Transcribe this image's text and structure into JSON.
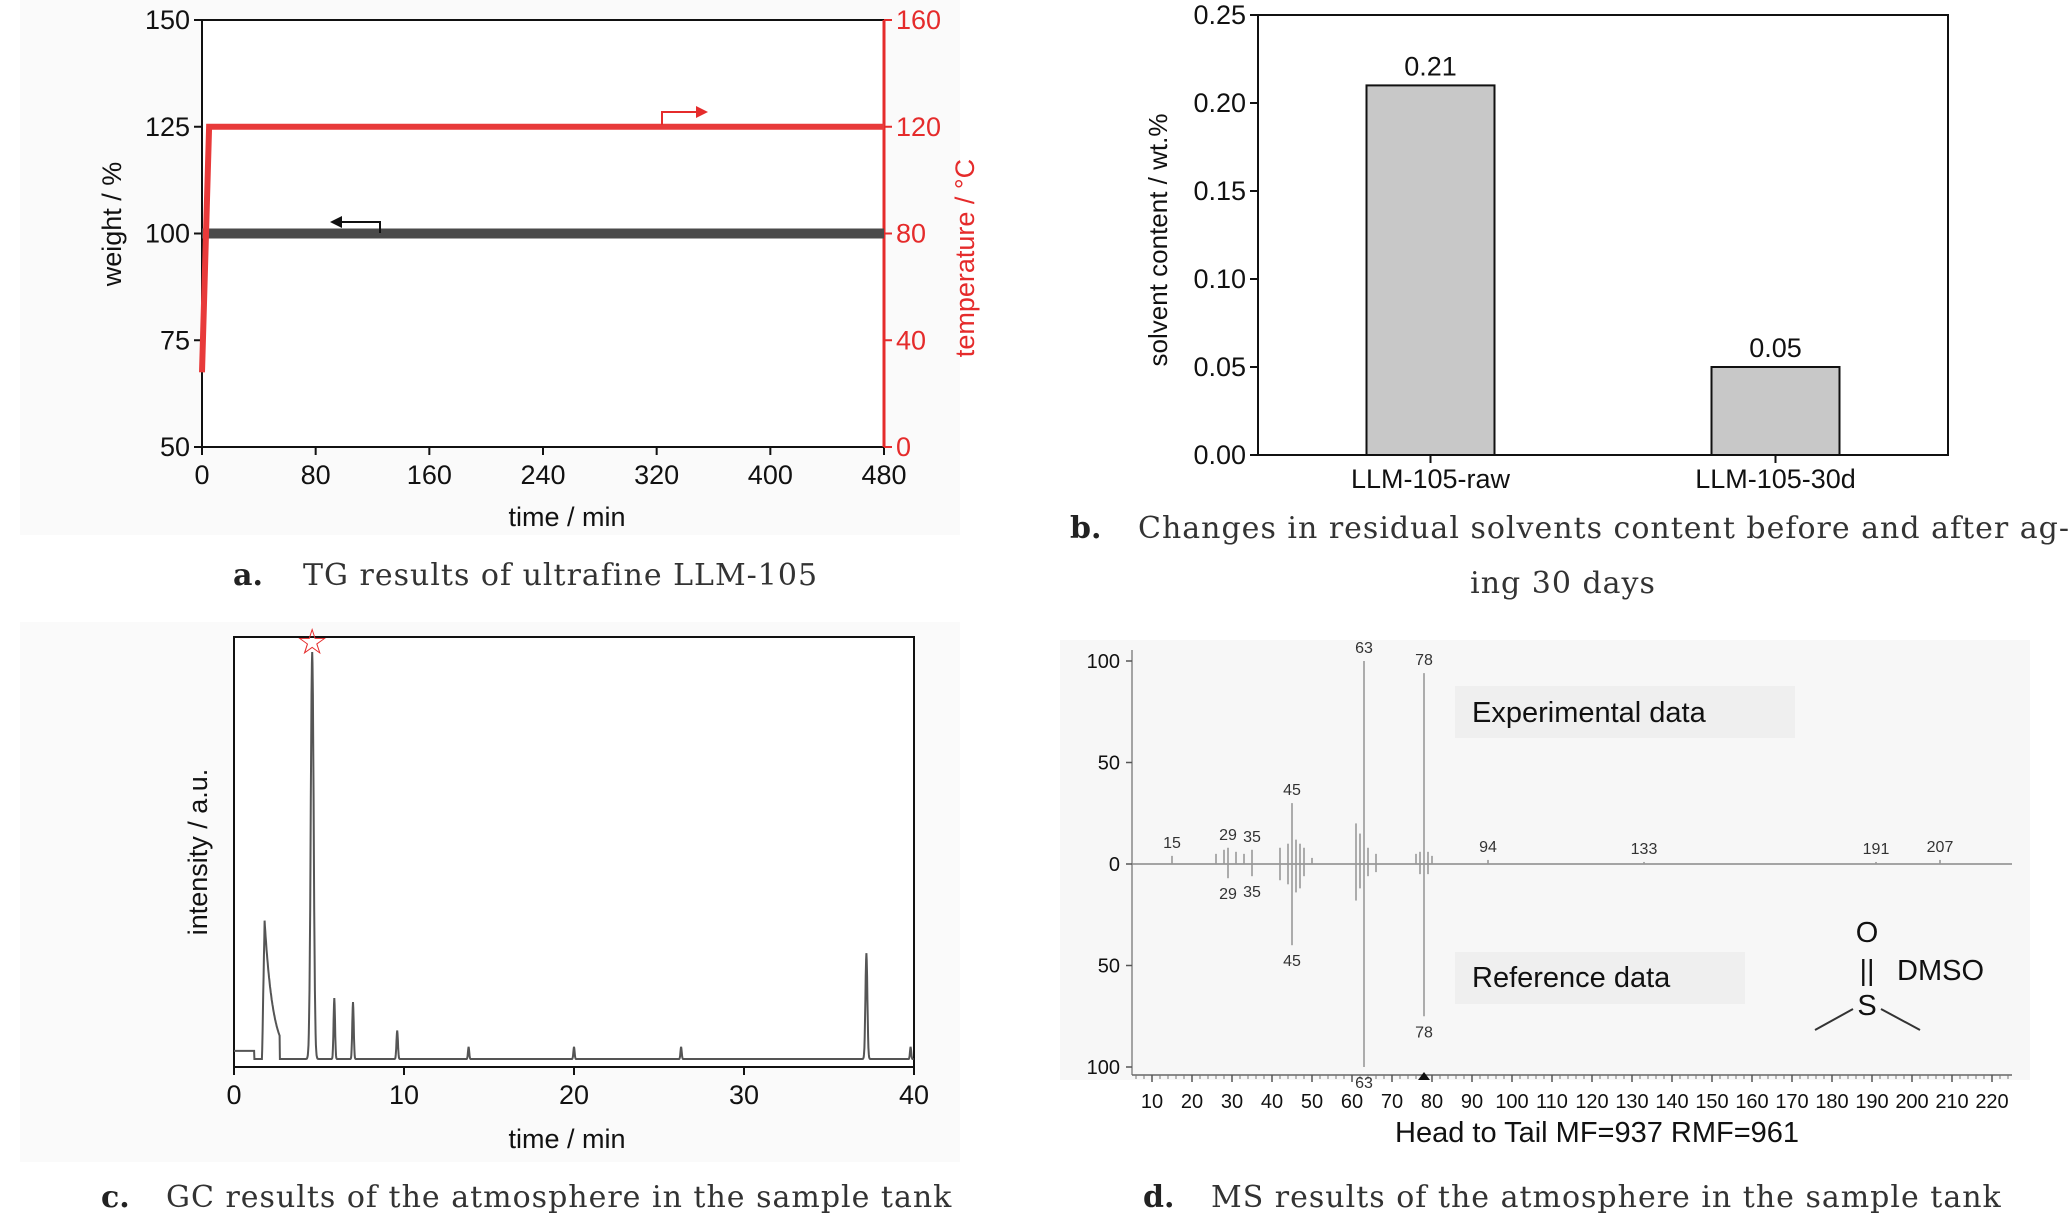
{
  "chart_data": [
    {
      "panel": "a",
      "type": "line",
      "caption_letter": "a.",
      "caption": "TG results of ultrafine LLM-105",
      "xlabel": "time / min",
      "ylabel": "weight / %",
      "y2label": "temperature / °C",
      "xlim": [
        0,
        480
      ],
      "ylim": [
        50,
        150
      ],
      "y2lim": [
        0,
        160
      ],
      "x_ticks": [
        "0",
        "80",
        "160",
        "240",
        "320",
        "400",
        "480"
      ],
      "y_ticks": [
        "50",
        "75",
        "100",
        "125",
        "150"
      ],
      "y2_ticks": [
        "0",
        "40",
        "80",
        "120",
        "160"
      ],
      "colors": {
        "weight": "#4a4a4a",
        "temperature": "#e83a3a"
      },
      "series": [
        {
          "axis": "left",
          "x": [
            0,
            480
          ],
          "y": [
            100,
            100
          ]
        },
        {
          "axis": "right",
          "x": [
            0,
            5,
            480
          ],
          "y": [
            28,
            120,
            120
          ]
        }
      ]
    },
    {
      "panel": "b",
      "type": "bar",
      "caption_letter": "b.",
      "caption_line1": "Changes in residual solvents content before and after ag-",
      "caption_line2": "ing 30 days",
      "categories": [
        "LLM-105-raw",
        "LLM-105-30d"
      ],
      "values": [
        0.21,
        0.05
      ],
      "data_labels": [
        "0.21",
        "0.05"
      ],
      "ylabel": "solvent content / wt.%",
      "ylim": [
        0,
        0.25
      ],
      "y_ticks": [
        "0.00",
        "0.05",
        "0.10",
        "0.15",
        "0.20",
        "0.25"
      ],
      "bar_color": "#c8c8c8"
    },
    {
      "panel": "c",
      "type": "line",
      "caption_letter": "c.",
      "caption": "GC results of the atmosphere in the sample tank",
      "xlabel": "time / min",
      "ylabel": "intensity / a.u.",
      "xlim": [
        0,
        40
      ],
      "x_ticks": [
        "0",
        "10",
        "20",
        "30",
        "40"
      ],
      "marker": "☆",
      "peaks": [
        {
          "x": 1.8,
          "h": 0.34,
          "w": 0.9
        },
        {
          "x": 4.6,
          "h": 1.0,
          "w": 0.12
        },
        {
          "x": 5.9,
          "h": 0.15,
          "w": 0.06
        },
        {
          "x": 7.0,
          "h": 0.14,
          "w": 0.06
        },
        {
          "x": 9.6,
          "h": 0.07,
          "w": 0.06
        },
        {
          "x": 13.8,
          "h": 0.03,
          "w": 0.05
        },
        {
          "x": 20.0,
          "h": 0.03,
          "w": 0.05
        },
        {
          "x": 26.3,
          "h": 0.03,
          "w": 0.05
        },
        {
          "x": 37.2,
          "h": 0.26,
          "w": 0.08
        },
        {
          "x": 39.8,
          "h": 0.03,
          "w": 0.05
        }
      ]
    },
    {
      "panel": "d",
      "type": "bar",
      "caption_letter": "d.",
      "caption": "MS results of the atmosphere in the sample tank",
      "xlim": [
        5,
        225
      ],
      "x_ticks": [
        "10",
        "20",
        "30",
        "40",
        "50",
        "60",
        "70",
        "80",
        "90",
        "100",
        "110",
        "120",
        "130",
        "140",
        "150",
        "160",
        "170",
        "180",
        "190",
        "200",
        "210",
        "220"
      ],
      "y_ticks_top": [
        "100",
        "50",
        "0"
      ],
      "y_ticks_bottom": [
        "50",
        "100"
      ],
      "experimental_label": "Experimental data",
      "reference_label": "Reference data",
      "footer": "Head to Tail MF=937  RMF=961",
      "molecule": {
        "top": "O",
        "bond": "||",
        "center": "S",
        "name": "DMSO"
      },
      "experimental_peaks": [
        {
          "mz": 15,
          "i": 4,
          "label": "15"
        },
        {
          "mz": 26,
          "i": 5
        },
        {
          "mz": 28,
          "i": 7
        },
        {
          "mz": 29,
          "i": 8,
          "label": "29"
        },
        {
          "mz": 31,
          "i": 6
        },
        {
          "mz": 33,
          "i": 5
        },
        {
          "mz": 35,
          "i": 7,
          "label": "35"
        },
        {
          "mz": 42,
          "i": 8
        },
        {
          "mz": 44,
          "i": 10
        },
        {
          "mz": 45,
          "i": 30,
          "label": "45"
        },
        {
          "mz": 46,
          "i": 12
        },
        {
          "mz": 47,
          "i": 10
        },
        {
          "mz": 48,
          "i": 8
        },
        {
          "mz": 50,
          "i": 3
        },
        {
          "mz": 61,
          "i": 20
        },
        {
          "mz": 62,
          "i": 15
        },
        {
          "mz": 63,
          "i": 100,
          "label": "63"
        },
        {
          "mz": 64,
          "i": 8
        },
        {
          "mz": 66,
          "i": 5
        },
        {
          "mz": 76,
          "i": 5
        },
        {
          "mz": 77,
          "i": 6
        },
        {
          "mz": 78,
          "i": 94,
          "label": "78"
        },
        {
          "mz": 79,
          "i": 6
        },
        {
          "mz": 80,
          "i": 4
        },
        {
          "mz": 94,
          "i": 2,
          "label": "94"
        },
        {
          "mz": 133,
          "i": 1,
          "label": "133"
        },
        {
          "mz": 191,
          "i": 1,
          "label": "191"
        },
        {
          "mz": 207,
          "i": 2,
          "label": "207"
        }
      ],
      "reference_peaks": [
        {
          "mz": 29,
          "i": 7,
          "label": "29"
        },
        {
          "mz": 35,
          "i": 6,
          "label": "35"
        },
        {
          "mz": 42,
          "i": 8
        },
        {
          "mz": 44,
          "i": 10
        },
        {
          "mz": 45,
          "i": 40,
          "label": "45"
        },
        {
          "mz": 46,
          "i": 14
        },
        {
          "mz": 47,
          "i": 12
        },
        {
          "mz": 48,
          "i": 6
        },
        {
          "mz": 61,
          "i": 18
        },
        {
          "mz": 62,
          "i": 12
        },
        {
          "mz": 63,
          "i": 100,
          "label": "63"
        },
        {
          "mz": 64,
          "i": 6
        },
        {
          "mz": 66,
          "i": 4
        },
        {
          "mz": 77,
          "i": 5
        },
        {
          "mz": 78,
          "i": 75,
          "label": "78"
        },
        {
          "mz": 79,
          "i": 5
        }
      ]
    }
  ]
}
